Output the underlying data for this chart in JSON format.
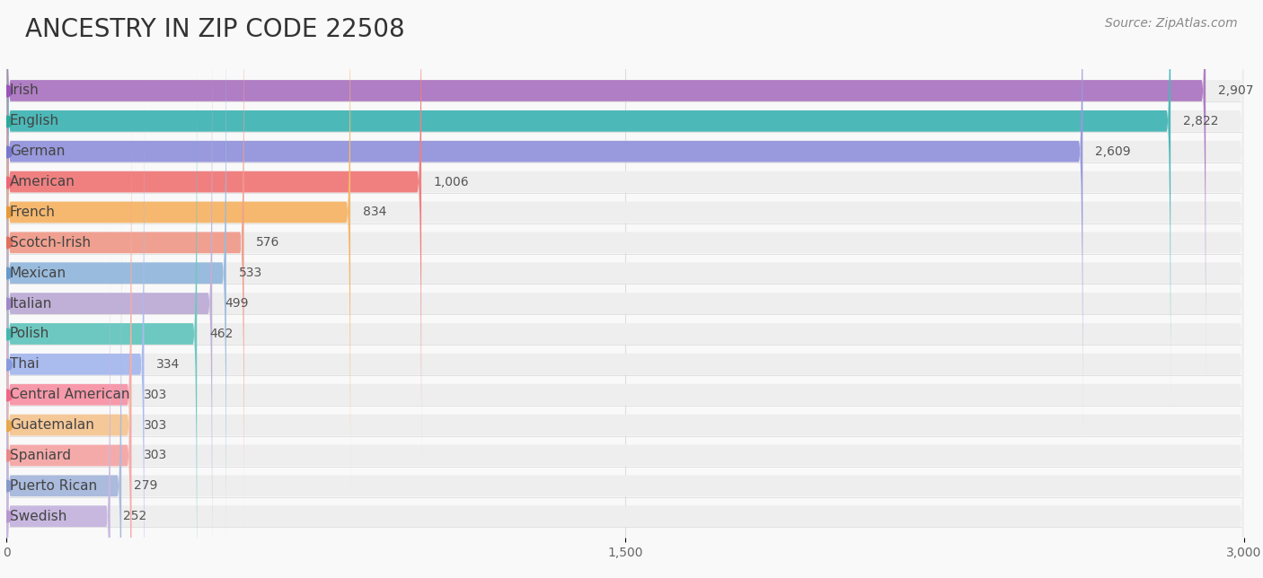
{
  "title": "ANCESTRY IN ZIP CODE 22508",
  "source": "Source: ZipAtlas.com",
  "categories": [
    "Irish",
    "English",
    "German",
    "American",
    "French",
    "Scotch-Irish",
    "Mexican",
    "Italian",
    "Polish",
    "Thai",
    "Central American",
    "Guatemalan",
    "Spaniard",
    "Puerto Rican",
    "Swedish"
  ],
  "values": [
    2907,
    2822,
    2609,
    1006,
    834,
    576,
    533,
    499,
    462,
    334,
    303,
    303,
    303,
    279,
    252
  ],
  "bar_colors": [
    "#b07ec4",
    "#4db8b8",
    "#9999dd",
    "#f08080",
    "#f5b86e",
    "#f0a090",
    "#99bbdd",
    "#c0b0d8",
    "#6cc8c0",
    "#aabbee",
    "#f799aa",
    "#f5c898",
    "#f5aaaa",
    "#aabbdd",
    "#c8b8e0"
  ],
  "dot_colors": [
    "#9955bb",
    "#2aaa9a",
    "#7777cc",
    "#ee6677",
    "#e8993a",
    "#e07060",
    "#6699cc",
    "#a088c8",
    "#44b8b0",
    "#8899dd",
    "#f06688",
    "#e8a850",
    "#e88888",
    "#8899cc",
    "#b898d0"
  ],
  "xlim": [
    0,
    3000
  ],
  "xticks": [
    0,
    1500,
    3000
  ],
  "background_color": "#f9f9f9",
  "bar_bg_color": "#efefef",
  "title_fontsize": 20,
  "label_fontsize": 11,
  "value_fontsize": 10,
  "source_fontsize": 10
}
